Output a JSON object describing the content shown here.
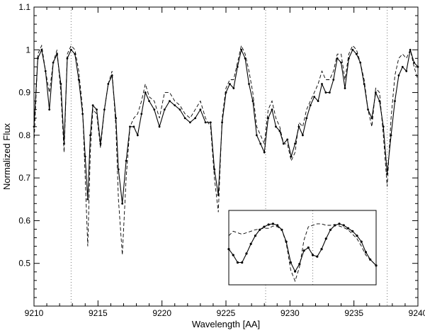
{
  "chart_data": {
    "type": "line",
    "title": "",
    "xlabel": "Wavelength [AA]",
    "ylabel": "Normalized Flux",
    "xlim": [
      9210,
      9240
    ],
    "ylim": [
      0.4,
      1.1
    ],
    "xticks": [
      9210,
      9215,
      9220,
      9225,
      9230,
      9235,
      9240
    ],
    "xtick_labels": [
      "9210",
      "9215",
      "9220",
      "9225",
      "9230",
      "9235",
      "9240"
    ],
    "yticks": [
      0.5,
      0.6,
      0.7,
      0.8,
      0.9,
      1.0,
      1.1
    ],
    "ytick_labels": [
      "0.5",
      "0.6",
      "0.7",
      "0.8",
      "0.9",
      "1",
      "1.1"
    ],
    "grid": false,
    "legend": "none",
    "reference_lines_x": [
      9212.9,
      9228.1,
      9237.6
    ],
    "series": [
      {
        "style": "solid-with-points",
        "color": "#000000",
        "x": [
          9210.0,
          9210.3,
          9210.6,
          9210.9,
          9211.2,
          9211.5,
          9211.8,
          9212.1,
          9212.35,
          9212.6,
          9212.9,
          9213.2,
          9213.5,
          9213.8,
          9214.0,
          9214.2,
          9214.4,
          9214.6,
          9214.9,
          9215.2,
          9215.5,
          9215.8,
          9216.1,
          9216.4,
          9216.6,
          9216.9,
          9217.2,
          9217.5,
          9217.8,
          9218.1,
          9218.4,
          9218.7,
          9219.0,
          9219.4,
          9219.8,
          9220.2,
          9220.6,
          9221.0,
          9221.4,
          9221.8,
          9222.2,
          9222.6,
          9223.0,
          9223.4,
          9223.8,
          9224.1,
          9224.4,
          9224.7,
          9225.0,
          9225.3,
          9225.6,
          9225.9,
          9226.2,
          9226.5,
          9226.8,
          9227.1,
          9227.4,
          9227.7,
          9228.0,
          9228.3,
          9228.6,
          9228.9,
          9229.2,
          9229.5,
          9229.8,
          9230.1,
          9230.4,
          9230.7,
          9231.0,
          9231.3,
          9231.6,
          9231.9,
          9232.2,
          9232.5,
          9232.8,
          9233.1,
          9233.4,
          9233.7,
          9234.0,
          9234.3,
          9234.6,
          9234.9,
          9235.2,
          9235.5,
          9235.8,
          9236.1,
          9236.4,
          9236.7,
          9237.0,
          9237.3,
          9237.6,
          9237.9,
          9238.2,
          9238.5,
          9238.8,
          9239.1,
          9239.4,
          9239.7,
          9240.0
        ],
        "y": [
          0.82,
          0.98,
          1.0,
          0.95,
          0.86,
          0.97,
          0.99,
          0.92,
          0.78,
          0.98,
          1.0,
          0.99,
          0.93,
          0.85,
          0.75,
          0.65,
          0.8,
          0.87,
          0.86,
          0.78,
          0.86,
          0.92,
          0.94,
          0.84,
          0.72,
          0.64,
          0.74,
          0.82,
          0.82,
          0.8,
          0.85,
          0.9,
          0.88,
          0.86,
          0.82,
          0.86,
          0.88,
          0.87,
          0.86,
          0.84,
          0.83,
          0.84,
          0.86,
          0.83,
          0.83,
          0.72,
          0.66,
          0.83,
          0.9,
          0.92,
          0.91,
          0.96,
          1.0,
          0.98,
          0.92,
          0.88,
          0.8,
          0.78,
          0.76,
          0.84,
          0.86,
          0.82,
          0.81,
          0.78,
          0.79,
          0.75,
          0.78,
          0.82,
          0.8,
          0.84,
          0.87,
          0.89,
          0.88,
          0.92,
          0.9,
          0.9,
          0.93,
          0.98,
          0.97,
          0.91,
          0.98,
          1.0,
          0.99,
          0.97,
          0.92,
          0.86,
          0.84,
          0.9,
          0.88,
          0.82,
          0.71,
          0.8,
          0.88,
          0.94,
          0.96,
          0.95,
          1.0,
          0.97,
          0.96
        ]
      },
      {
        "style": "dashed",
        "color": "#000000",
        "x": [
          9210.0,
          9210.3,
          9210.6,
          9210.9,
          9211.2,
          9211.5,
          9211.8,
          9212.1,
          9212.35,
          9212.6,
          9212.9,
          9213.2,
          9213.5,
          9213.8,
          9214.0,
          9214.2,
          9214.4,
          9214.6,
          9214.9,
          9215.2,
          9215.5,
          9215.8,
          9216.1,
          9216.4,
          9216.6,
          9216.9,
          9217.2,
          9217.5,
          9217.8,
          9218.1,
          9218.4,
          9218.7,
          9219.0,
          9219.4,
          9219.8,
          9220.2,
          9220.6,
          9221.0,
          9221.4,
          9221.8,
          9222.2,
          9222.6,
          9223.0,
          9223.4,
          9223.8,
          9224.1,
          9224.4,
          9224.7,
          9225.0,
          9225.3,
          9225.6,
          9225.9,
          9226.2,
          9226.5,
          9226.8,
          9227.1,
          9227.4,
          9227.7,
          9228.0,
          9228.3,
          9228.6,
          9228.9,
          9229.2,
          9229.5,
          9229.8,
          9230.1,
          9230.4,
          9230.7,
          9231.0,
          9231.3,
          9231.6,
          9231.9,
          9232.2,
          9232.5,
          9232.8,
          9233.1,
          9233.4,
          9233.7,
          9234.0,
          9234.3,
          9234.6,
          9234.9,
          9235.2,
          9235.5,
          9235.8,
          9236.1,
          9236.4,
          9236.7,
          9237.0,
          9237.3,
          9237.6,
          9237.9,
          9238.2,
          9238.5,
          9238.8,
          9239.1,
          9239.4,
          9239.7,
          9240.0
        ],
        "y": [
          0.78,
          0.99,
          1.01,
          0.95,
          0.9,
          0.97,
          1.0,
          0.9,
          0.76,
          0.99,
          1.01,
          1.0,
          0.95,
          0.86,
          0.7,
          0.54,
          0.76,
          0.86,
          0.85,
          0.77,
          0.86,
          0.92,
          0.95,
          0.82,
          0.65,
          0.52,
          0.7,
          0.82,
          0.84,
          0.85,
          0.88,
          0.92,
          0.89,
          0.88,
          0.84,
          0.9,
          0.9,
          0.88,
          0.87,
          0.85,
          0.84,
          0.86,
          0.88,
          0.84,
          0.82,
          0.7,
          0.62,
          0.84,
          0.91,
          0.93,
          0.93,
          0.97,
          1.01,
          0.99,
          0.95,
          0.9,
          0.82,
          0.8,
          0.78,
          0.86,
          0.88,
          0.84,
          0.82,
          0.78,
          0.78,
          0.74,
          0.76,
          0.83,
          0.82,
          0.86,
          0.88,
          0.9,
          0.92,
          0.95,
          0.93,
          0.93,
          0.95,
          0.99,
          0.99,
          0.93,
          0.99,
          1.01,
          1.0,
          0.97,
          0.93,
          0.86,
          0.82,
          0.91,
          0.9,
          0.8,
          0.68,
          0.84,
          0.94,
          0.98,
          0.99,
          0.98,
          1.0,
          0.96,
          0.93
        ]
      }
    ],
    "inset": {
      "type": "line",
      "grid": false,
      "reference_lines_x": [
        0.57
      ],
      "series": [
        {
          "style": "solid-with-points",
          "color": "#000000",
          "x": [
            0.0,
            0.03,
            0.06,
            0.09,
            0.12,
            0.15,
            0.18,
            0.21,
            0.24,
            0.27,
            0.3,
            0.33,
            0.36,
            0.39,
            0.42,
            0.45,
            0.48,
            0.51,
            0.54,
            0.57,
            0.6,
            0.63,
            0.66,
            0.69,
            0.72,
            0.75,
            0.78,
            0.81,
            0.84,
            0.87,
            0.9,
            0.93,
            0.96,
            1.0
          ],
          "y": [
            0.48,
            0.4,
            0.3,
            0.3,
            0.42,
            0.55,
            0.66,
            0.74,
            0.78,
            0.81,
            0.82,
            0.8,
            0.74,
            0.58,
            0.3,
            0.18,
            0.28,
            0.46,
            0.5,
            0.4,
            0.38,
            0.48,
            0.62,
            0.74,
            0.8,
            0.82,
            0.8,
            0.76,
            0.72,
            0.66,
            0.58,
            0.44,
            0.34,
            0.26
          ]
        },
        {
          "style": "dashed",
          "color": "#000000",
          "x": [
            0.0,
            0.03,
            0.06,
            0.09,
            0.12,
            0.15,
            0.18,
            0.21,
            0.24,
            0.27,
            0.3,
            0.33,
            0.36,
            0.39,
            0.42,
            0.45,
            0.48,
            0.51,
            0.54,
            0.57,
            0.6,
            0.63,
            0.66,
            0.69,
            0.72,
            0.75,
            0.78,
            0.81,
            0.84,
            0.87,
            0.9,
            0.93,
            0.96,
            1.0
          ],
          "y": [
            0.66,
            0.72,
            0.7,
            0.68,
            0.7,
            0.72,
            0.74,
            0.75,
            0.76,
            0.76,
            0.79,
            0.78,
            0.74,
            0.56,
            0.2,
            0.05,
            0.24,
            0.6,
            0.78,
            0.8,
            0.82,
            0.82,
            0.8,
            0.8,
            0.81,
            0.79,
            0.77,
            0.74,
            0.68,
            0.62,
            0.52,
            0.4,
            0.34,
            0.26
          ]
        }
      ]
    }
  }
}
